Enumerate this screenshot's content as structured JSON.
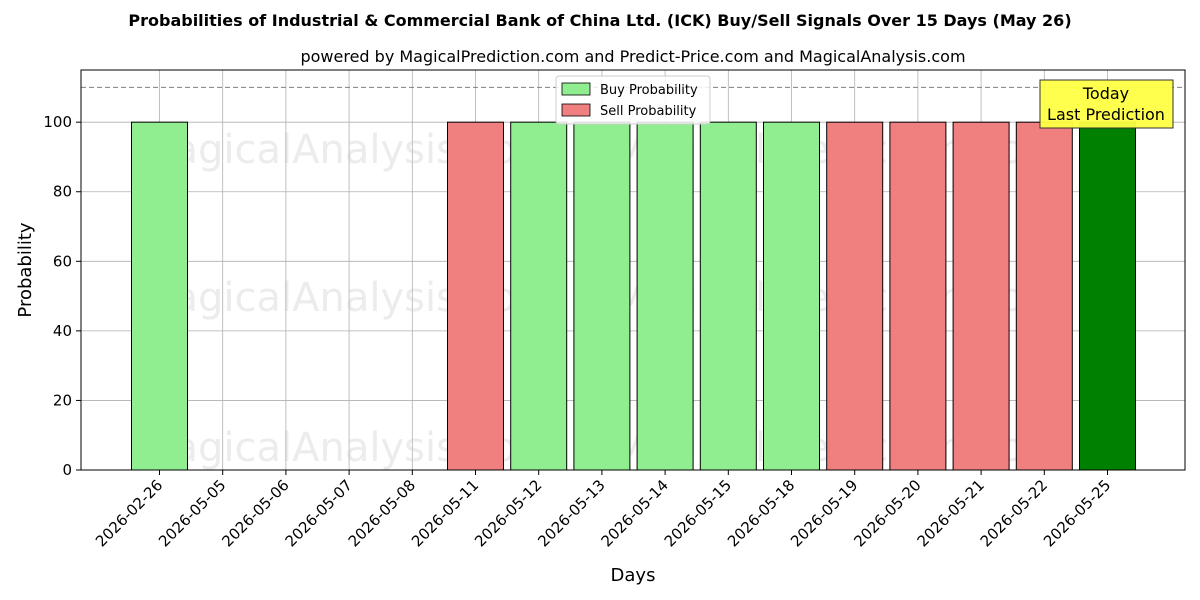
{
  "chart_data": {
    "type": "bar",
    "title": "Probabilities of Industrial & Commercial Bank of China Ltd. (ICK) Buy/Sell Signals Over 15 Days (May 26)",
    "subtitle": "powered by MagicalPrediction.com and Predict-Price.com and MagicalAnalysis.com",
    "xlabel": "Days",
    "ylabel": "Probability",
    "ylim": [
      0,
      115
    ],
    "yticks": [
      0,
      20,
      40,
      60,
      80,
      100
    ],
    "grid": true,
    "reference_line": 110,
    "legend_position": "top-center",
    "categories": [
      "2026-02-26",
      "2026-05-05",
      "2026-05-06",
      "2026-05-07",
      "2026-05-08",
      "2026-05-11",
      "2026-05-12",
      "2026-05-13",
      "2026-05-14",
      "2026-05-15",
      "2026-05-18",
      "2026-05-19",
      "2026-05-20",
      "2026-05-21",
      "2026-05-22",
      "2026-05-25"
    ],
    "bars": [
      {
        "date": "2026-02-26",
        "signal": "buy",
        "value": 100
      },
      {
        "date": "2026-05-11",
        "signal": "sell",
        "value": 100
      },
      {
        "date": "2026-05-12",
        "signal": "buy",
        "value": 100
      },
      {
        "date": "2026-05-13",
        "signal": "buy",
        "value": 100
      },
      {
        "date": "2026-05-14",
        "signal": "buy",
        "value": 100
      },
      {
        "date": "2026-05-15",
        "signal": "buy",
        "value": 100
      },
      {
        "date": "2026-05-18",
        "signal": "buy",
        "value": 100
      },
      {
        "date": "2026-05-19",
        "signal": "sell",
        "value": 100
      },
      {
        "date": "2026-05-20",
        "signal": "sell",
        "value": 100
      },
      {
        "date": "2026-05-21",
        "signal": "sell",
        "value": 100
      },
      {
        "date": "2026-05-22",
        "signal": "sell",
        "value": 100
      },
      {
        "date": "2026-05-25",
        "signal": "today",
        "value": 100
      }
    ],
    "legend": [
      {
        "key": "buy",
        "label": "Buy Probability"
      },
      {
        "key": "sell",
        "label": "Sell Probability"
      }
    ],
    "annotation": {
      "line1": "Today",
      "line2": "Last Prediction"
    },
    "colors": {
      "buy": "#90ee90",
      "sell": "#f08080",
      "today": "#008000",
      "annotation_bg": "#ffff44"
    },
    "watermarks": [
      "MagicalAnalysis.com",
      "MagicalPrediction.com"
    ]
  }
}
